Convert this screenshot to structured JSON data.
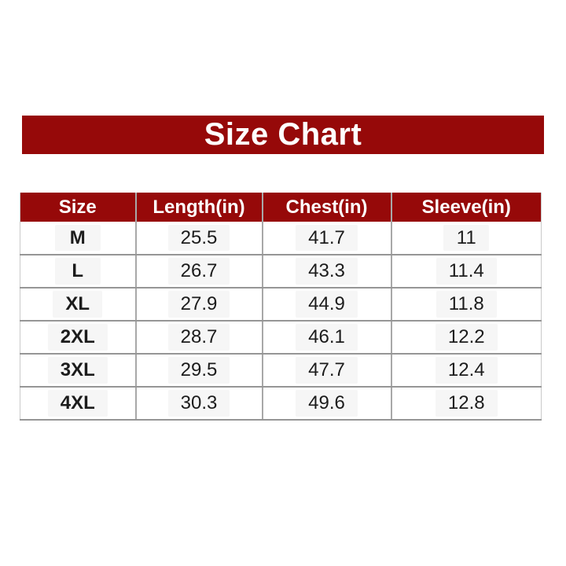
{
  "banner": {
    "title": "Size Chart"
  },
  "chart_data": {
    "type": "table",
    "title": "Size Chart",
    "columns": [
      "Size",
      "Length(in)",
      "Chest(in)",
      "Sleeve(in)"
    ],
    "rows": [
      [
        "M",
        "25.5",
        "41.7",
        "11"
      ],
      [
        "L",
        "26.7",
        "43.3",
        "11.4"
      ],
      [
        "XL",
        "27.9",
        "44.9",
        "11.8"
      ],
      [
        "2XL",
        "28.7",
        "46.1",
        "12.2"
      ],
      [
        "3XL",
        "29.5",
        "47.7",
        "12.4"
      ],
      [
        "4XL",
        "30.3",
        "49.6",
        "12.8"
      ]
    ],
    "units": "inches",
    "layout_hints": {
      "header_background": "#960909",
      "header_text_color": "#ffffff",
      "grid": "horizontal and vertical gray lines",
      "legend_position": "none"
    }
  },
  "colors": {
    "brand_red": "#960909",
    "grid_h": "#969696",
    "grid_v": "#a8a8a8",
    "text": "#1c1c1c",
    "pill": "#f6f6f6"
  }
}
